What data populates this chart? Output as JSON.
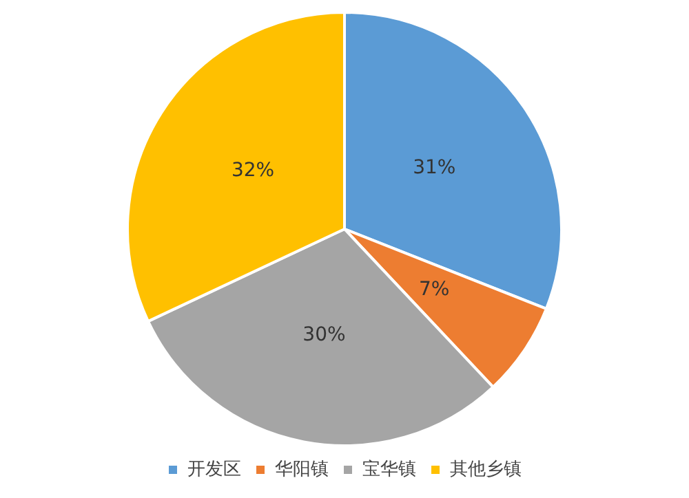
{
  "chart_data": {
    "type": "pie",
    "categories": [
      "开发区",
      "华阳镇",
      "宝华镇",
      "其他乡镇"
    ],
    "values": [
      31,
      7,
      30,
      32
    ],
    "colors": [
      "#5b9bd5",
      "#ed7d31",
      "#a5a5a5",
      "#ffc000"
    ],
    "value_labels": [
      "31%",
      "7%",
      "30%",
      "32%"
    ],
    "legend": "bottom"
  }
}
